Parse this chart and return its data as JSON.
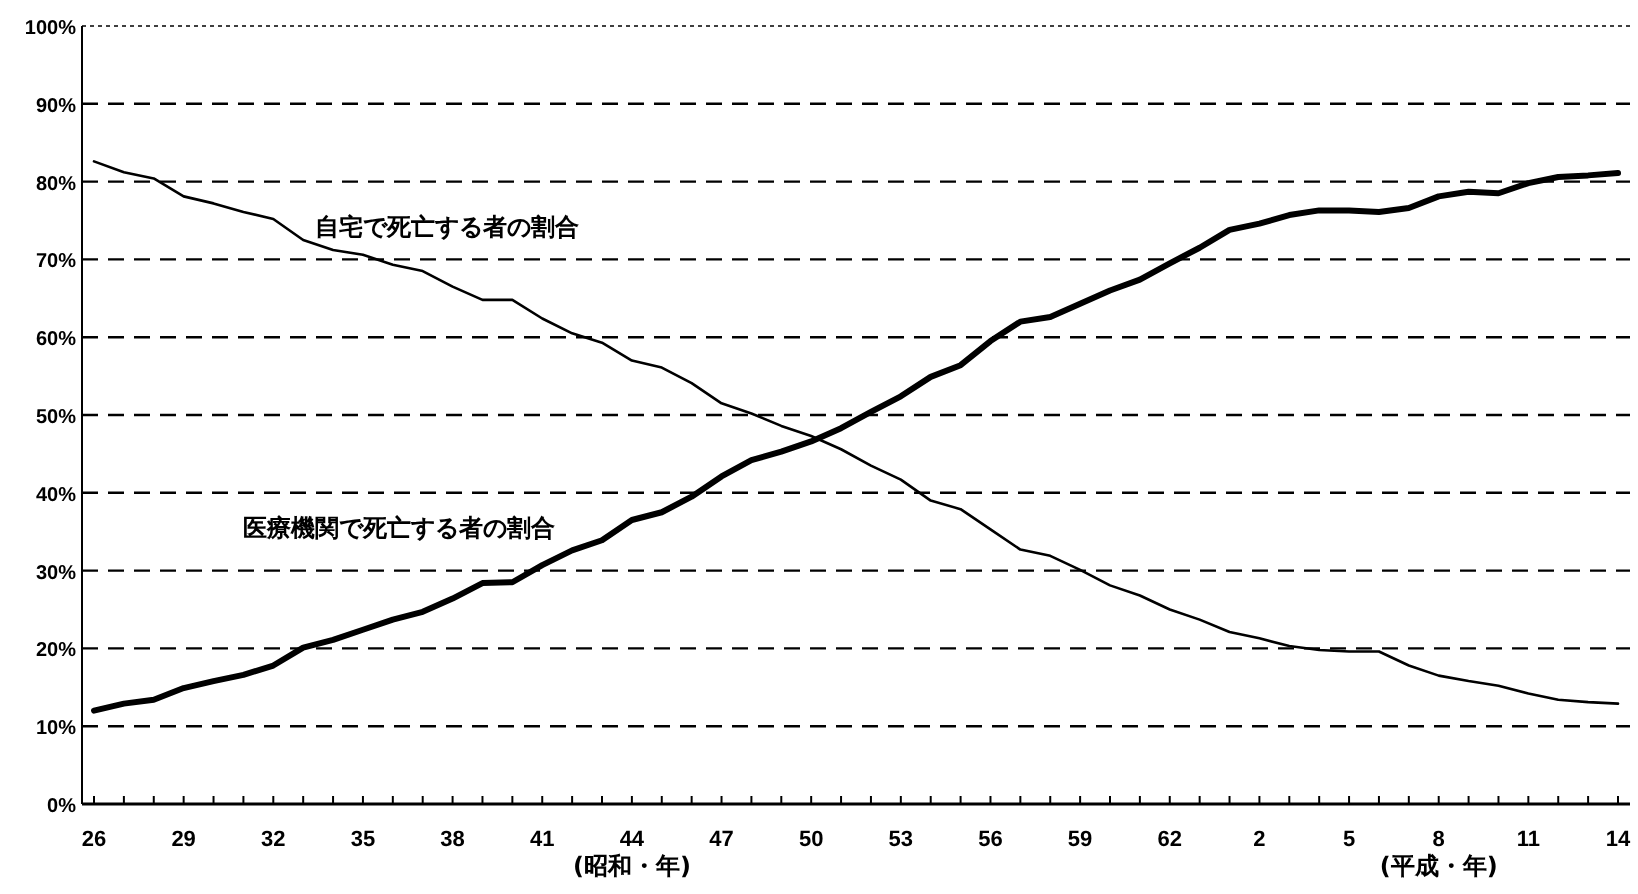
{
  "chart_data": {
    "type": "line",
    "categories": [
      "26",
      null,
      null,
      "29",
      null,
      null,
      "32",
      null,
      null,
      "35",
      null,
      null,
      "38",
      null,
      null,
      "41",
      null,
      null,
      "44",
      null,
      null,
      "47",
      null,
      null,
      "50",
      null,
      null,
      "53",
      null,
      null,
      "56",
      null,
      null,
      "59",
      null,
      null,
      "62",
      null,
      null,
      "2",
      null,
      null,
      "5",
      null,
      null,
      "8",
      null,
      null,
      "11",
      null,
      null,
      "14"
    ],
    "series": [
      {
        "name": "自宅で死亡する者の割合",
        "color": "#000000",
        "values": [
          82.6,
          81.2,
          80.4,
          78.1,
          77.2,
          76.1,
          75.2,
          72.5,
          71.2,
          70.6,
          69.3,
          68.5,
          66.5,
          64.8,
          64.8,
          62.4,
          60.5,
          59.3,
          57.0,
          56.1,
          54.1,
          51.5,
          50.2,
          48.6,
          47.3,
          45.6,
          43.5,
          41.7,
          39.0,
          37.9,
          35.3,
          32.7,
          31.9,
          30.1,
          28.1,
          26.8,
          25.0,
          23.7,
          22.1,
          21.3,
          20.3,
          19.8,
          19.6,
          19.6,
          17.8,
          16.5,
          15.8,
          15.2,
          14.2,
          13.4,
          13.1,
          12.9
        ]
      },
      {
        "name": "医療機関で死亡する者の割合",
        "color": "#000000",
        "values": [
          12.0,
          12.9,
          13.4,
          14.9,
          15.8,
          16.6,
          17.8,
          20.1,
          21.1,
          22.4,
          23.7,
          24.7,
          26.4,
          28.4,
          28.5,
          30.7,
          32.6,
          33.9,
          36.5,
          37.5,
          39.5,
          42.1,
          44.2,
          45.3,
          46.6,
          48.3,
          50.4,
          52.4,
          54.9,
          56.4,
          59.5,
          62.0,
          62.6,
          64.3,
          66.0,
          67.4,
          69.5,
          71.5,
          73.8,
          74.6,
          75.7,
          76.3,
          76.3,
          76.1,
          76.6,
          78.1,
          78.7,
          78.5,
          79.8,
          80.6,
          80.8,
          81.1
        ]
      }
    ],
    "ylim": [
      0,
      100
    ],
    "yticks": [
      {
        "value": 0,
        "label": "0%"
      },
      {
        "value": 10,
        "label": "10%"
      },
      {
        "value": 20,
        "label": "20%"
      },
      {
        "value": 30,
        "label": "30%"
      },
      {
        "value": 40,
        "label": "40%"
      },
      {
        "value": 50,
        "label": "50%"
      },
      {
        "value": 60,
        "label": "60%"
      },
      {
        "value": 70,
        "label": "70%"
      },
      {
        "value": 80,
        "label": "80%"
      },
      {
        "value": 90,
        "label": "90%"
      },
      {
        "value": 100,
        "label": "100%"
      }
    ],
    "grid": "y",
    "annotations": [
      "(昭和・年)",
      "(平成・年)"
    ]
  }
}
